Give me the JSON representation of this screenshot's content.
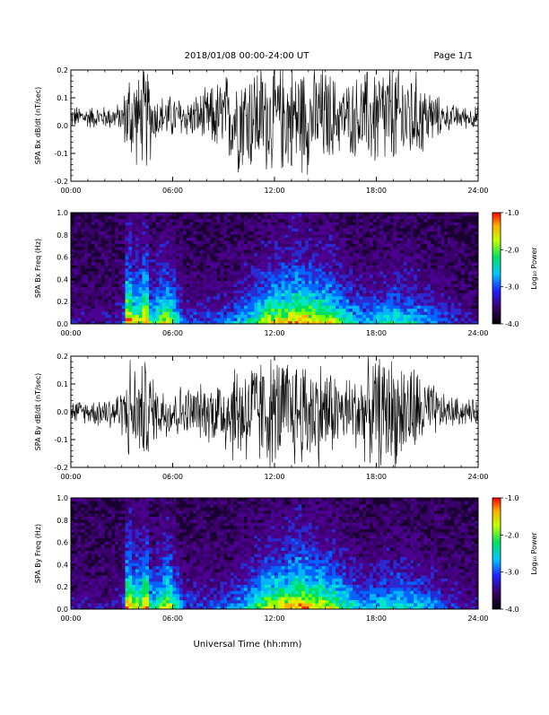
{
  "header": {
    "date_range": "2018/01/08  00:00-24:00 UT",
    "page": "Page 1/1"
  },
  "footer": {
    "xlabel": "Universal Time (hh:mm)"
  },
  "x_tick_labels": [
    "00:00",
    "06:00",
    "12:00",
    "18:00",
    "24:00"
  ],
  "colorbar": {
    "label": "Log₁₀ Power",
    "ticks": [
      "-1.0",
      "-2.0",
      "-3.0",
      "-4.0"
    ]
  },
  "chart_data": [
    {
      "type": "line",
      "title": "",
      "ylabel": "SPA Bx dB/dt (nT/sec)",
      "xlabel": "",
      "xlim": [
        0,
        24
      ],
      "ylim": [
        -0.2,
        0.2
      ],
      "y_tick_labels": [
        "0.2",
        "0.1",
        "0.0",
        "-0.1",
        "-0.2"
      ],
      "x_hours": [
        0,
        1,
        2,
        3,
        3.5,
        4,
        4.5,
        5,
        6,
        7,
        8,
        9,
        10,
        11,
        12,
        13,
        14,
        15,
        16,
        17,
        18,
        19,
        20,
        21,
        22,
        23,
        24
      ],
      "envelope_amplitude": [
        0.04,
        0.04,
        0.04,
        0.05,
        0.2,
        0.15,
        0.2,
        0.08,
        0.08,
        0.07,
        0.1,
        0.15,
        0.2,
        0.2,
        0.2,
        0.2,
        0.2,
        0.18,
        0.12,
        0.15,
        0.2,
        0.2,
        0.18,
        0.12,
        0.05,
        0.04,
        0.04
      ],
      "baseline": 0.03
    },
    {
      "type": "heatmap",
      "title": "",
      "ylabel": "SPA Bx Freq (Hz)",
      "xlabel": "",
      "xlim": [
        0,
        24
      ],
      "ylim": [
        0,
        1.0
      ],
      "y_tick_labels": [
        "1.0",
        "0.8",
        "0.6",
        "0.4",
        "0.2",
        "0.0"
      ],
      "colorbar_range": [
        -4.0,
        -1.0
      ]
    },
    {
      "type": "line",
      "title": "",
      "ylabel": "SPA By dB/dt (nT/sec)",
      "xlabel": "",
      "xlim": [
        0,
        24
      ],
      "ylim": [
        -0.2,
        0.2
      ],
      "y_tick_labels": [
        "0.2",
        "0.1",
        "0.0",
        "-0.1",
        "-0.2"
      ],
      "x_hours": [
        0,
        1,
        2,
        3,
        3.5,
        4,
        4.5,
        5,
        6,
        7,
        8,
        9,
        10,
        11,
        12,
        13,
        14,
        15,
        16,
        17,
        18,
        19,
        20,
        21,
        22,
        23,
        24
      ],
      "envelope_amplitude": [
        0.04,
        0.04,
        0.06,
        0.08,
        0.2,
        0.15,
        0.2,
        0.1,
        0.1,
        0.09,
        0.1,
        0.15,
        0.2,
        0.2,
        0.2,
        0.2,
        0.2,
        0.18,
        0.12,
        0.15,
        0.2,
        0.2,
        0.18,
        0.12,
        0.06,
        0.05,
        0.04
      ],
      "baseline": 0.0
    },
    {
      "type": "heatmap",
      "title": "",
      "ylabel": "SPA By Freq (Hz)",
      "xlabel": "",
      "xlim": [
        0,
        24
      ],
      "ylim": [
        0,
        1.0
      ],
      "y_tick_labels": [
        "1.0",
        "0.8",
        "0.6",
        "0.4",
        "0.2",
        "0.0"
      ],
      "colorbar_range": [
        -4.0,
        -1.0
      ]
    }
  ]
}
